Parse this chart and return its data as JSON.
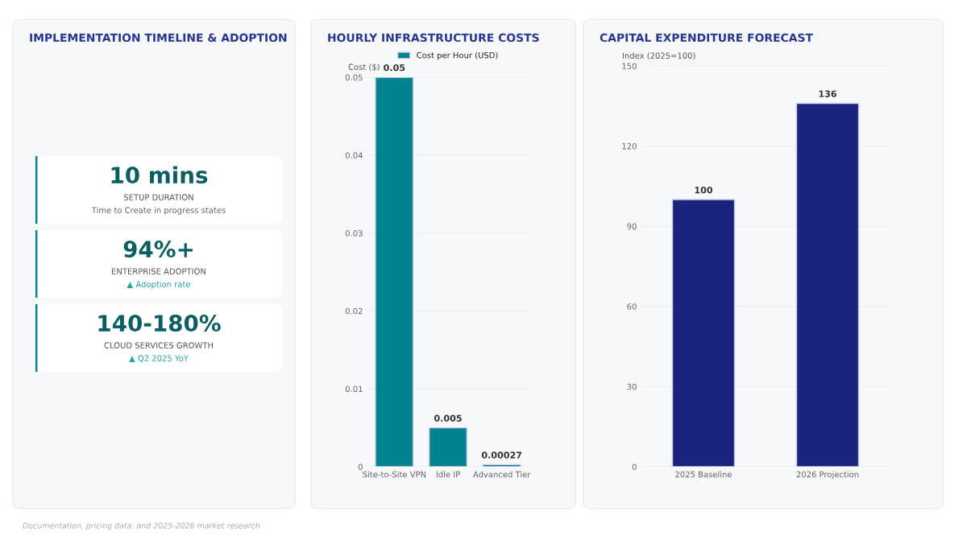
{
  "chart_data": [
    {
      "type": "other",
      "title": "IMPLEMENTATION TIMELINE & ADOPTION",
      "annotations": [
        "10 mins",
        "SETUP DURATION",
        "Time to Create in progress states",
        "94%+",
        "ENTERPRISE ADOPTION",
        "▲ Adoption rate",
        "140-180%",
        "CLOUD SERVICES GROWTH",
        "▲ Q2 2025 YoY"
      ]
    },
    {
      "type": "bar",
      "title": "HOURLY INFRASTRUCTURE COSTS",
      "ylabel": "Cost ($)",
      "categories": [
        "Site-to-Site VPN",
        "Idle IP",
        "Advanced Tier"
      ],
      "series": [
        {
          "name": "Cost per Hour (USD)",
          "color": "#00838f",
          "values": [
            0.05,
            0.005,
            0.00027
          ]
        }
      ],
      "ylim": [
        0,
        0.05
      ],
      "yticks": [
        0,
        0.01,
        0.02,
        0.03,
        0.04,
        0.05
      ],
      "grid": "y",
      "legend": "top",
      "data_labels": true
    },
    {
      "type": "bar",
      "title": "CAPITAL EXPENDITURE FORECAST",
      "ylabel": "Index (2025=100)",
      "categories": [
        "2025 Baseline",
        "2026 Projection"
      ],
      "series": [
        {
          "color": "#1a237e",
          "values": [
            100,
            136
          ]
        }
      ],
      "ylim": [
        0,
        150
      ],
      "yticks": [
        0,
        30,
        60,
        90,
        120,
        150
      ],
      "grid": "y",
      "data_labels": true,
      "annotations": [
        "Documentation, pricing data, and 2025-2026 market research"
      ]
    }
  ]
}
